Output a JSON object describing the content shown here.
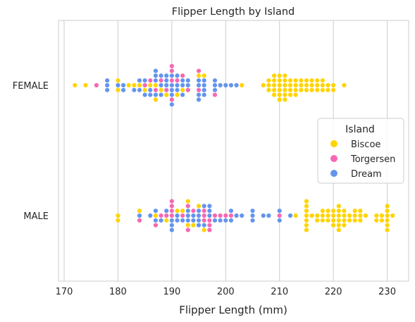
{
  "chart_data": {
    "type": "scatter",
    "subtype": "swarm",
    "title": "Flipper Length by Island",
    "xlabel": "Flipper Length (mm)",
    "ylabel": "",
    "xlim": [
      169,
      234
    ],
    "xticks": [
      170,
      180,
      190,
      200,
      210,
      220,
      230
    ],
    "categories": [
      "FEMALE",
      "MALE"
    ],
    "grid": "vertical",
    "legend": {
      "title": "Island",
      "placement": "center-right"
    },
    "series": [
      {
        "name": "Biscoe",
        "color": "#FFD400"
      },
      {
        "name": "Torgersen",
        "color": "#F768B2"
      },
      {
        "name": "Dream",
        "color": "#6495ED"
      }
    ],
    "points": {
      "FEMALE": [
        [
          172,
          "Biscoe"
        ],
        [
          174,
          "Biscoe"
        ],
        [
          176,
          "Torgersen"
        ],
        [
          178,
          "Dream"
        ],
        [
          178,
          "Dream"
        ],
        [
          178,
          "Dream"
        ],
        [
          180,
          "Dream"
        ],
        [
          180,
          "Biscoe"
        ],
        [
          180,
          "Biscoe"
        ],
        [
          181,
          "Dream"
        ],
        [
          181,
          "Dream"
        ],
        [
          182,
          "Biscoe"
        ],
        [
          183,
          "Biscoe"
        ],
        [
          183,
          "Dream"
        ],
        [
          184,
          "Biscoe"
        ],
        [
          184,
          "Dream"
        ],
        [
          184,
          "Dream"
        ],
        [
          185,
          "Torgersen"
        ],
        [
          185,
          "Biscoe"
        ],
        [
          185,
          "Dream"
        ],
        [
          185,
          "Dream"
        ],
        [
          186,
          "Biscoe"
        ],
        [
          186,
          "Dream"
        ],
        [
          186,
          "Torgersen"
        ],
        [
          186,
          "Dream"
        ],
        [
          187,
          "Biscoe"
        ],
        [
          187,
          "Torgersen"
        ],
        [
          187,
          "Dream"
        ],
        [
          187,
          "Dream"
        ],
        [
          187,
          "Dream"
        ],
        [
          187,
          "Biscoe"
        ],
        [
          187,
          "Dream"
        ],
        [
          188,
          "Dream"
        ],
        [
          188,
          "Biscoe"
        ],
        [
          188,
          "Torgersen"
        ],
        [
          188,
          "Dream"
        ],
        [
          188,
          "Dream"
        ],
        [
          189,
          "Dream"
        ],
        [
          189,
          "Torgersen"
        ],
        [
          189,
          "Dream"
        ],
        [
          189,
          "Biscoe"
        ],
        [
          189,
          "Dream"
        ],
        [
          190,
          "Dream"
        ],
        [
          190,
          "Dream"
        ],
        [
          190,
          "Torgersen"
        ],
        [
          190,
          "Dream"
        ],
        [
          190,
          "Dream"
        ],
        [
          190,
          "Torgersen"
        ],
        [
          190,
          "Torgersen"
        ],
        [
          190,
          "Dream"
        ],
        [
          190,
          "Torgersen"
        ],
        [
          191,
          "Dream"
        ],
        [
          191,
          "Dream"
        ],
        [
          191,
          "Torgersen"
        ],
        [
          191,
          "Biscoe"
        ],
        [
          191,
          "Dream"
        ],
        [
          192,
          "Dream"
        ],
        [
          192,
          "Biscoe"
        ],
        [
          192,
          "Dream"
        ],
        [
          192,
          "Dream"
        ],
        [
          192,
          "Torgersen"
        ],
        [
          193,
          "Dream"
        ],
        [
          193,
          "Torgersen"
        ],
        [
          193,
          "Dream"
        ],
        [
          195,
          "Dream"
        ],
        [
          195,
          "Torgersen"
        ],
        [
          195,
          "Dream"
        ],
        [
          195,
          "Dream"
        ],
        [
          195,
          "Biscoe"
        ],
        [
          195,
          "Dream"
        ],
        [
          195,
          "Torgersen"
        ],
        [
          196,
          "Dream"
        ],
        [
          196,
          "Dream"
        ],
        [
          196,
          "Dream"
        ],
        [
          196,
          "Dream"
        ],
        [
          196,
          "Biscoe"
        ],
        [
          198,
          "Dream"
        ],
        [
          198,
          "Dream"
        ],
        [
          198,
          "Dream"
        ],
        [
          198,
          "Torgersen"
        ],
        [
          199,
          "Dream"
        ],
        [
          200,
          "Dream"
        ],
        [
          201,
          "Dream"
        ],
        [
          202,
          "Dream"
        ],
        [
          203,
          "Biscoe"
        ],
        [
          207,
          "Biscoe"
        ],
        [
          208,
          "Biscoe"
        ],
        [
          208,
          "Biscoe"
        ],
        [
          208,
          "Biscoe"
        ],
        [
          209,
          "Biscoe"
        ],
        [
          209,
          "Biscoe"
        ],
        [
          209,
          "Biscoe"
        ],
        [
          209,
          "Biscoe"
        ],
        [
          209,
          "Biscoe"
        ],
        [
          210,
          "Biscoe"
        ],
        [
          210,
          "Biscoe"
        ],
        [
          210,
          "Biscoe"
        ],
        [
          210,
          "Biscoe"
        ],
        [
          210,
          "Biscoe"
        ],
        [
          210,
          "Biscoe"
        ],
        [
          211,
          "Biscoe"
        ],
        [
          211,
          "Biscoe"
        ],
        [
          211,
          "Biscoe"
        ],
        [
          211,
          "Biscoe"
        ],
        [
          211,
          "Biscoe"
        ],
        [
          211,
          "Biscoe"
        ],
        [
          212,
          "Biscoe"
        ],
        [
          212,
          "Biscoe"
        ],
        [
          212,
          "Biscoe"
        ],
        [
          212,
          "Biscoe"
        ],
        [
          213,
          "Biscoe"
        ],
        [
          213,
          "Biscoe"
        ],
        [
          213,
          "Biscoe"
        ],
        [
          213,
          "Biscoe"
        ],
        [
          214,
          "Biscoe"
        ],
        [
          214,
          "Biscoe"
        ],
        [
          214,
          "Biscoe"
        ],
        [
          215,
          "Biscoe"
        ],
        [
          215,
          "Biscoe"
        ],
        [
          215,
          "Biscoe"
        ],
        [
          216,
          "Biscoe"
        ],
        [
          216,
          "Biscoe"
        ],
        [
          216,
          "Biscoe"
        ],
        [
          217,
          "Biscoe"
        ],
        [
          217,
          "Biscoe"
        ],
        [
          217,
          "Biscoe"
        ],
        [
          218,
          "Biscoe"
        ],
        [
          218,
          "Biscoe"
        ],
        [
          218,
          "Biscoe"
        ],
        [
          219,
          "Biscoe"
        ],
        [
          219,
          "Biscoe"
        ],
        [
          220,
          "Biscoe"
        ],
        [
          220,
          "Biscoe"
        ],
        [
          222,
          "Biscoe"
        ]
      ],
      "MALE": [
        [
          180,
          "Biscoe"
        ],
        [
          180,
          "Biscoe"
        ],
        [
          184,
          "Dream"
        ],
        [
          184,
          "Torgersen"
        ],
        [
          184,
          "Biscoe"
        ],
        [
          186,
          "Dream"
        ],
        [
          187,
          "Biscoe"
        ],
        [
          187,
          "Dream"
        ],
        [
          187,
          "Dream"
        ],
        [
          187,
          "Torgersen"
        ],
        [
          188,
          "Torgersen"
        ],
        [
          188,
          "Dream"
        ],
        [
          189,
          "Torgersen"
        ],
        [
          189,
          "Biscoe"
        ],
        [
          189,
          "Dream"
        ],
        [
          190,
          "Torgersen"
        ],
        [
          190,
          "Dream"
        ],
        [
          190,
          "Torgersen"
        ],
        [
          190,
          "Dream"
        ],
        [
          190,
          "Torgersen"
        ],
        [
          190,
          "Dream"
        ],
        [
          190,
          "Torgersen"
        ],
        [
          191,
          "Dream"
        ],
        [
          191,
          "Dream"
        ],
        [
          191,
          "Biscoe"
        ],
        [
          192,
          "Torgersen"
        ],
        [
          192,
          "Dream"
        ],
        [
          192,
          "Biscoe"
        ],
        [
          193,
          "Dream"
        ],
        [
          193,
          "Dream"
        ],
        [
          193,
          "Dream"
        ],
        [
          193,
          "Biscoe"
        ],
        [
          193,
          "Torgersen"
        ],
        [
          193,
          "Torgersen"
        ],
        [
          193,
          "Biscoe"
        ],
        [
          194,
          "Dream"
        ],
        [
          194,
          "Dream"
        ],
        [
          194,
          "Torgersen"
        ],
        [
          194,
          "Biscoe"
        ],
        [
          195,
          "Dream"
        ],
        [
          195,
          "Dream"
        ],
        [
          195,
          "Dream"
        ],
        [
          195,
          "Dream"
        ],
        [
          195,
          "Biscoe"
        ],
        [
          196,
          "Torgersen"
        ],
        [
          196,
          "Torgersen"
        ],
        [
          196,
          "Torgersen"
        ],
        [
          196,
          "Dream"
        ],
        [
          196,
          "Dream"
        ],
        [
          196,
          "Biscoe"
        ],
        [
          197,
          "Dream"
        ],
        [
          197,
          "Torgersen"
        ],
        [
          197,
          "Dream"
        ],
        [
          197,
          "Torgersen"
        ],
        [
          197,
          "Dream"
        ],
        [
          197,
          "Torgersen"
        ],
        [
          198,
          "Torgersen"
        ],
        [
          198,
          "Dream"
        ],
        [
          199,
          "Torgersen"
        ],
        [
          199,
          "Dream"
        ],
        [
          200,
          "Torgersen"
        ],
        [
          200,
          "Dream"
        ],
        [
          201,
          "Torgersen"
        ],
        [
          201,
          "Dream"
        ],
        [
          201,
          "Dream"
        ],
        [
          202,
          "Dream"
        ],
        [
          203,
          "Dream"
        ],
        [
          205,
          "Dream"
        ],
        [
          205,
          "Dream"
        ],
        [
          205,
          "Dream"
        ],
        [
          207,
          "Dream"
        ],
        [
          208,
          "Dream"
        ],
        [
          210,
          "Torgersen"
        ],
        [
          210,
          "Dream"
        ],
        [
          210,
          "Dream"
        ],
        [
          212,
          "Dream"
        ],
        [
          213,
          "Biscoe"
        ],
        [
          215,
          "Biscoe"
        ],
        [
          215,
          "Biscoe"
        ],
        [
          215,
          "Biscoe"
        ],
        [
          215,
          "Biscoe"
        ],
        [
          215,
          "Biscoe"
        ],
        [
          215,
          "Biscoe"
        ],
        [
          215,
          "Biscoe"
        ],
        [
          216,
          "Biscoe"
        ],
        [
          217,
          "Biscoe"
        ],
        [
          217,
          "Biscoe"
        ],
        [
          218,
          "Biscoe"
        ],
        [
          218,
          "Biscoe"
        ],
        [
          218,
          "Biscoe"
        ],
        [
          219,
          "Biscoe"
        ],
        [
          219,
          "Biscoe"
        ],
        [
          219,
          "Biscoe"
        ],
        [
          220,
          "Biscoe"
        ],
        [
          220,
          "Biscoe"
        ],
        [
          220,
          "Biscoe"
        ],
        [
          220,
          "Biscoe"
        ],
        [
          221,
          "Biscoe"
        ],
        [
          221,
          "Biscoe"
        ],
        [
          221,
          "Biscoe"
        ],
        [
          221,
          "Biscoe"
        ],
        [
          221,
          "Biscoe"
        ],
        [
          221,
          "Biscoe"
        ],
        [
          222,
          "Biscoe"
        ],
        [
          222,
          "Biscoe"
        ],
        [
          222,
          "Biscoe"
        ],
        [
          222,
          "Biscoe"
        ],
        [
          223,
          "Biscoe"
        ],
        [
          223,
          "Biscoe"
        ],
        [
          224,
          "Biscoe"
        ],
        [
          224,
          "Biscoe"
        ],
        [
          224,
          "Biscoe"
        ],
        [
          225,
          "Biscoe"
        ],
        [
          225,
          "Biscoe"
        ],
        [
          225,
          "Biscoe"
        ],
        [
          226,
          "Biscoe"
        ],
        [
          228,
          "Biscoe"
        ],
        [
          228,
          "Biscoe"
        ],
        [
          229,
          "Biscoe"
        ],
        [
          229,
          "Biscoe"
        ],
        [
          230,
          "Biscoe"
        ],
        [
          230,
          "Biscoe"
        ],
        [
          230,
          "Biscoe"
        ],
        [
          230,
          "Biscoe"
        ],
        [
          230,
          "Biscoe"
        ],
        [
          230,
          "Biscoe"
        ],
        [
          231,
          "Biscoe"
        ]
      ]
    }
  }
}
